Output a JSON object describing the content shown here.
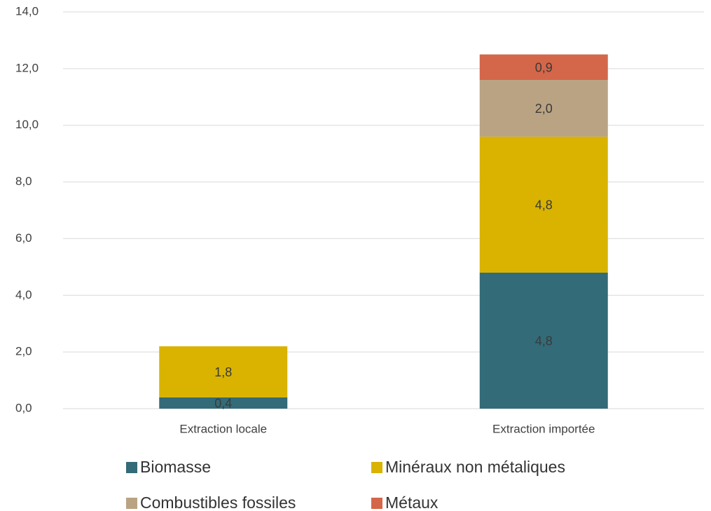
{
  "chart_data": {
    "type": "stacked_bar",
    "categories": [
      "Extraction locale",
      "Extraction importée"
    ],
    "series": [
      {
        "name": "Biomasse",
        "color": "#336b78",
        "values": [
          0.4,
          4.8
        ],
        "value_labels": [
          "0,4",
          "4,8"
        ]
      },
      {
        "name": "Minéraux non métaliques",
        "color": "#d9b300",
        "values": [
          1.8,
          4.8
        ],
        "value_labels": [
          "1,8",
          "4,8"
        ]
      },
      {
        "name": "Combustibles fossiles",
        "color": "#b9a383",
        "values": [
          null,
          2.0
        ],
        "value_labels": [
          null,
          "2,0"
        ]
      },
      {
        "name": "Métaux",
        "color": "#d4664a",
        "values": [
          null,
          0.9
        ],
        "value_labels": [
          null,
          "0,9"
        ]
      }
    ],
    "ylim": [
      0,
      14
    ],
    "yticks": [
      {
        "value": 0,
        "label": "0,0"
      },
      {
        "value": 2,
        "label": "2,0"
      },
      {
        "value": 4,
        "label": "4,0"
      },
      {
        "value": 6,
        "label": "6,0"
      },
      {
        "value": 8,
        "label": "8,0"
      },
      {
        "value": 10,
        "label": "10,0"
      },
      {
        "value": 12,
        "label": "12,0"
      },
      {
        "value": 14,
        "label": "14,0"
      }
    ],
    "grid": true,
    "legend": "bottom"
  }
}
